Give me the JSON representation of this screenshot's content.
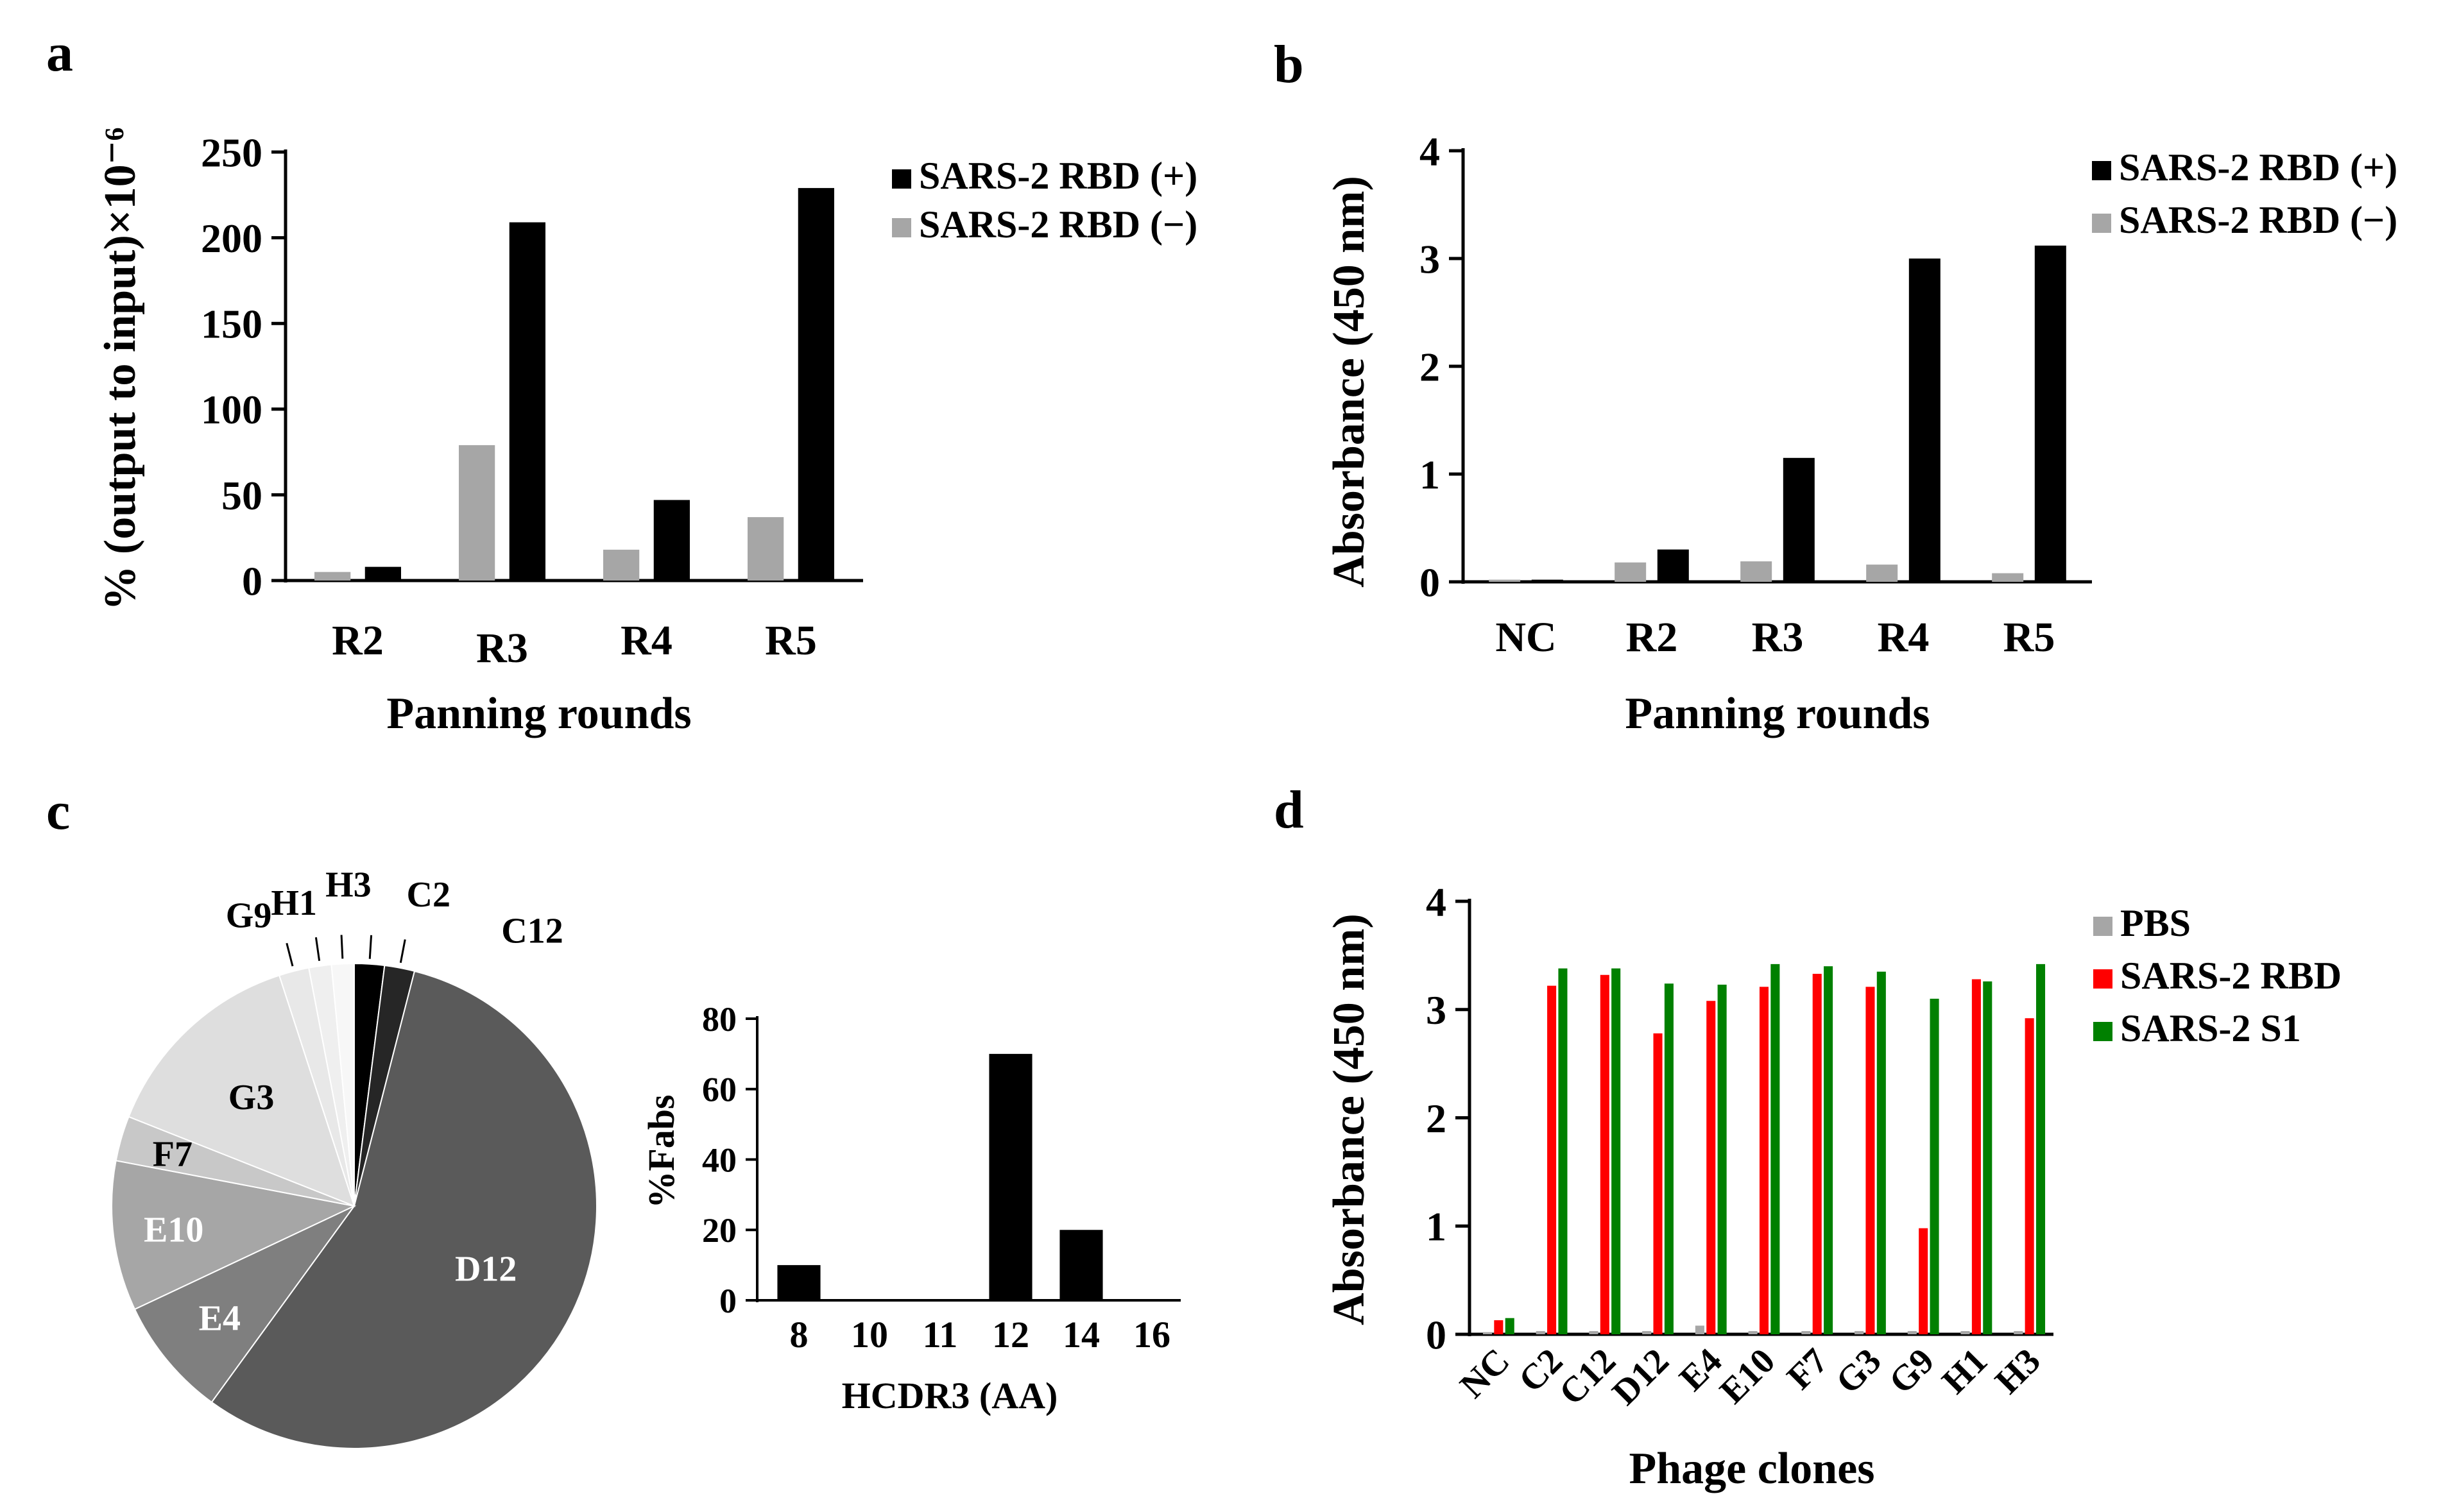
{
  "chart_data": [
    {
      "panel": "a",
      "type": "bar",
      "categories": [
        "R2",
        "R3",
        "R4",
        "R5"
      ],
      "series": [
        {
          "name": "SARS-2 RBD (−)",
          "values": [
            5,
            79,
            18,
            37
          ],
          "color": "#a6a6a6"
        },
        {
          "name": "SARS-2 RBD (+)",
          "values": [
            8,
            209,
            47,
            229
          ],
          "color": "#000000"
        }
      ],
      "legend": [
        "SARS-2 RBD (+)",
        "SARS-2 RBD (−)"
      ],
      "xlabel": "Panning rounds",
      "ylabel": "% (output to input)×10⁻⁶",
      "ylim": [
        0,
        250
      ],
      "yticks": [
        "0",
        "50",
        "100",
        "150",
        "200",
        "250"
      ]
    },
    {
      "panel": "b",
      "type": "bar",
      "categories": [
        "NC",
        "R2",
        "R3",
        "R4",
        "R5"
      ],
      "series": [
        {
          "name": "SARS-2 RBD (−)",
          "values": [
            0.02,
            0.18,
            0.19,
            0.16,
            0.08
          ],
          "color": "#a6a6a6"
        },
        {
          "name": "SARS-2 RBD (+)",
          "values": [
            0.02,
            0.3,
            1.15,
            3.0,
            3.12
          ],
          "color": "#000000"
        }
      ],
      "legend": [
        "SARS-2 RBD (+)",
        "SARS-2 RBD (−)"
      ],
      "xlabel": "Panning rounds",
      "ylabel": "Absorbance (450 nm)",
      "ylim": [
        0,
        4
      ],
      "yticks": [
        "0",
        "1",
        "2",
        "3",
        "4"
      ]
    },
    {
      "panel": "c-pie",
      "type": "pie",
      "labels": [
        "D12",
        "E4",
        "E10",
        "F7",
        "G3",
        "G9",
        "H1",
        "H3",
        "C2",
        "C12"
      ],
      "values": [
        56,
        8,
        10,
        3,
        14,
        2,
        1.5,
        1.5,
        2,
        2
      ],
      "colors": [
        "#5a5a5a",
        "#7f7f7f",
        "#a6a6a6",
        "#c8c8c8",
        "#dedede",
        "#e8e8e8",
        "#efefef",
        "#f7f7f7",
        "#000000",
        "#262626"
      ]
    },
    {
      "panel": "c-bar",
      "type": "bar",
      "categories": [
        "8",
        "10",
        "11",
        "12",
        "14",
        "16"
      ],
      "values": [
        10,
        0,
        0,
        70,
        20,
        0
      ],
      "xlabel": "HCDR3 (AA)",
      "ylabel": "%Fabs",
      "ylim": [
        0,
        80
      ],
      "yticks": [
        "0",
        "20",
        "40",
        "60",
        "80"
      ]
    },
    {
      "panel": "d",
      "type": "bar",
      "categories": [
        "NC",
        "C2",
        "C12",
        "D12",
        "E4",
        "E10",
        "F7",
        "G3",
        "G9",
        "H1",
        "H3"
      ],
      "series": [
        {
          "name": "PBS",
          "values": [
            0.02,
            0.03,
            0.03,
            0.03,
            0.08,
            0.03,
            0.03,
            0.03,
            0.03,
            0.03,
            0.03
          ],
          "color": "#a6a6a6"
        },
        {
          "name": "SARS-2 RBD",
          "values": [
            0.13,
            3.22,
            3.32,
            2.78,
            3.08,
            3.21,
            3.33,
            3.21,
            0.98,
            3.28,
            2.92
          ],
          "color": "#ff0000"
        },
        {
          "name": "SARS-2 S1",
          "values": [
            0.15,
            3.38,
            3.38,
            3.24,
            3.23,
            3.42,
            3.4,
            3.35,
            3.1,
            3.26,
            3.42
          ],
          "color": "#008000"
        }
      ],
      "xlabel": "Phage clones",
      "ylabel": "Absorbance (450 nm)",
      "ylim": [
        0,
        4
      ],
      "yticks": [
        "0",
        "1",
        "2",
        "3",
        "4"
      ]
    }
  ],
  "panel_labels": [
    "a",
    "b",
    "c",
    "d"
  ]
}
